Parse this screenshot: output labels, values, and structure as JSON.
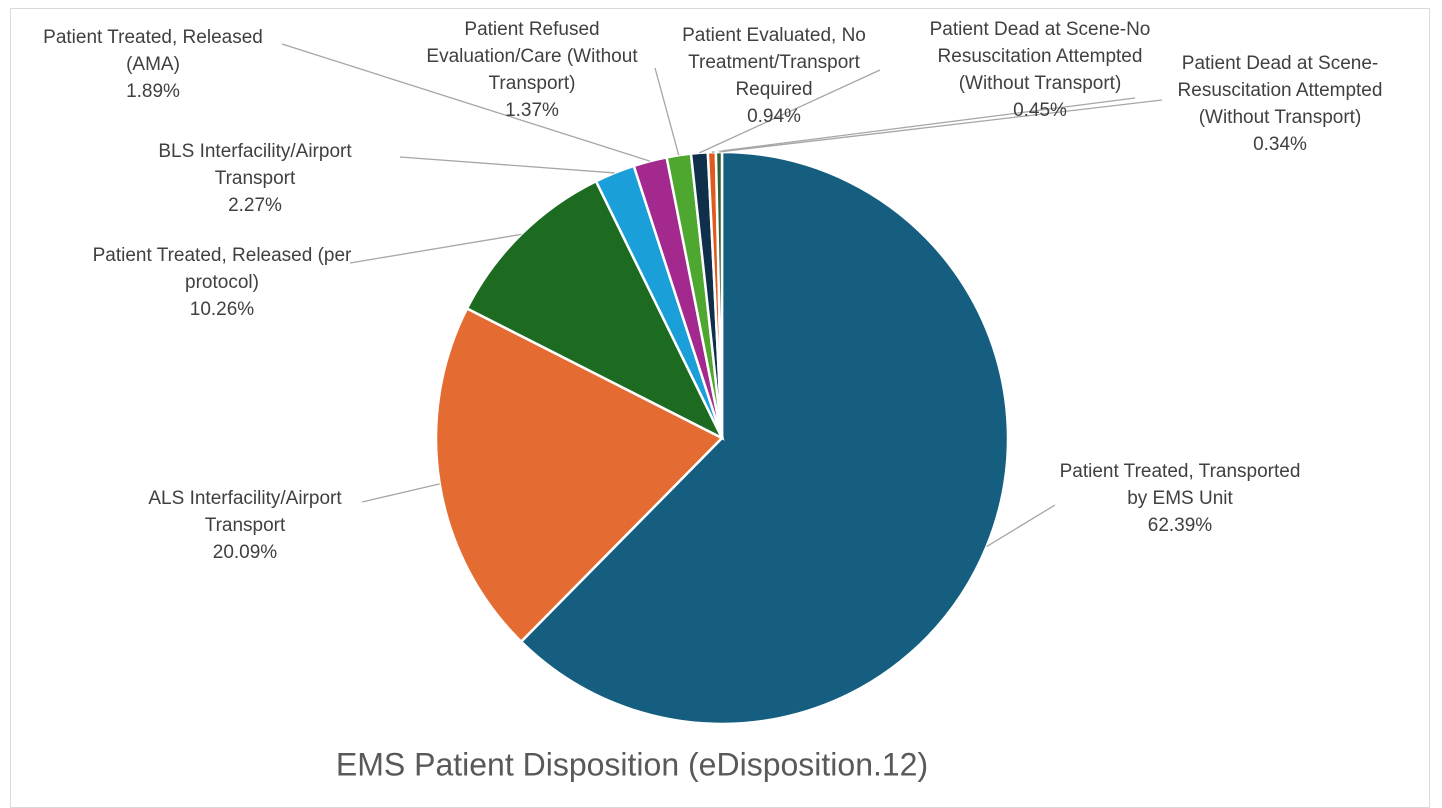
{
  "chart_data": {
    "type": "pie",
    "title": "EMS  Patient Disposition (eDisposition.12)",
    "categories": [
      "Patient Treated, Transported by  EMS Unit",
      "ALS Interfacility/Airport Transport",
      "Patient Treated, Released (per protocol)",
      "BLS Interfacility/Airport Transport",
      "Patient Treated, Released (AMA)",
      "Patient Refused Evaluation/Care (Without Transport)",
      "Patient Evaluated, No Treatment/Transport Required",
      "Patient Dead at Scene-No Resuscitation Attempted (Without Transport)",
      "Patient Dead at Scene-Resuscitation Attempted (Without Transport)"
    ],
    "values": [
      62.39,
      20.09,
      10.26,
      2.27,
      1.89,
      1.37,
      0.94,
      0.45,
      0.34
    ],
    "value_labels": [
      "62.39%",
      "20.09%",
      "10.26%",
      "2.27%",
      "1.89%",
      "1.37%",
      "0.94%",
      "0.45%",
      "0.34%"
    ],
    "colors": [
      "#155e80",
      "#e46c32",
      "#1c6b21",
      "#1b9fd8",
      "#a3298f",
      "#4ea72e",
      "#0f2f4a",
      "#e05a1f",
      "#2e5e3a"
    ]
  }
}
